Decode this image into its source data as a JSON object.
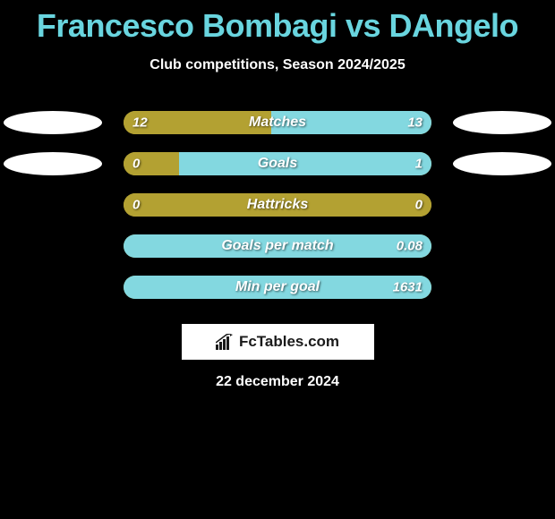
{
  "title": "Francesco Bombagi vs DAngelo",
  "subtitle": "Club competitions, Season 2024/2025",
  "date": "22 december 2024",
  "watermark": "FcTables.com",
  "colors": {
    "title": "#69d5df",
    "left_fill": "#b3a132",
    "right_fill": "#83d8e0",
    "track": "#a7b34c",
    "track_alt": "#a7b34c",
    "oval": "#ffffff",
    "bg": "#000000"
  },
  "rows": [
    {
      "label": "Matches",
      "left_val": "12",
      "right_val": "13",
      "left_pct": 48,
      "right_pct": 52,
      "left_color": "#b3a132",
      "right_color": "#83d8e0",
      "show_ovals": true
    },
    {
      "label": "Goals",
      "left_val": "0",
      "right_val": "1",
      "left_pct": 18,
      "right_pct": 82,
      "left_color": "#b3a132",
      "right_color": "#83d8e0",
      "show_ovals": true
    },
    {
      "label": "Hattricks",
      "left_val": "0",
      "right_val": "0",
      "left_pct": 100,
      "right_pct": 0,
      "left_color": "#b3a132",
      "right_color": "#83d8e0",
      "show_ovals": false
    },
    {
      "label": "Goals per match",
      "left_val": "",
      "right_val": "0.08",
      "left_pct": 0,
      "right_pct": 100,
      "left_color": "#b3a132",
      "right_color": "#83d8e0",
      "show_ovals": false
    },
    {
      "label": "Min per goal",
      "left_val": "",
      "right_val": "1631",
      "left_pct": 0,
      "right_pct": 100,
      "left_color": "#b3a132",
      "right_color": "#83d8e0",
      "show_ovals": false
    }
  ]
}
